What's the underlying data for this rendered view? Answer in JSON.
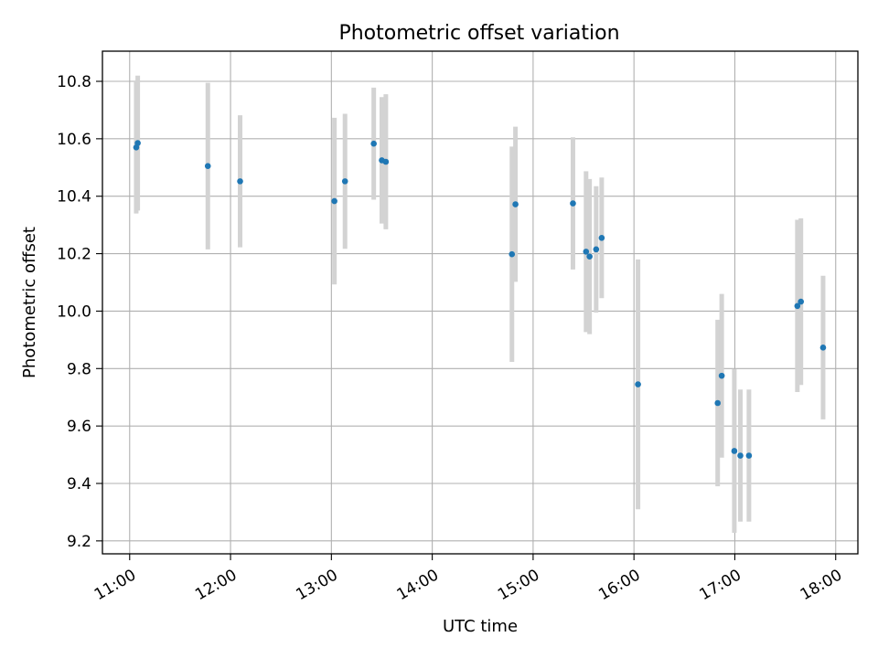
{
  "chart_data": {
    "type": "scatter",
    "title": "Photometric offset variation",
    "xlabel": "UTC time",
    "ylabel": "Photometric offset",
    "x_unit": "hours",
    "xlim": [
      10.73,
      18.22
    ],
    "ylim": [
      9.155,
      10.905
    ],
    "grid": true,
    "legend": "none",
    "x_ticks": [
      {
        "value": 11,
        "label": "11:00"
      },
      {
        "value": 12,
        "label": "12:00"
      },
      {
        "value": 13,
        "label": "13:00"
      },
      {
        "value": 14,
        "label": "14:00"
      },
      {
        "value": 15,
        "label": "15:00"
      },
      {
        "value": 16,
        "label": "16:00"
      },
      {
        "value": 17,
        "label": "17:00"
      },
      {
        "value": 18,
        "label": "18:00"
      }
    ],
    "y_ticks": [
      {
        "value": 9.2,
        "label": "9.2"
      },
      {
        "value": 9.4,
        "label": "9.4"
      },
      {
        "value": 9.6,
        "label": "9.6"
      },
      {
        "value": 9.8,
        "label": "9.8"
      },
      {
        "value": 10.0,
        "label": "10.0"
      },
      {
        "value": 10.2,
        "label": "10.2"
      },
      {
        "value": 10.4,
        "label": "10.4"
      },
      {
        "value": 10.6,
        "label": "10.6"
      },
      {
        "value": 10.8,
        "label": "10.8"
      }
    ],
    "series": [
      {
        "name": "offset",
        "marker_color": "#1f77b4",
        "errorbar_color": "#d3d3d3",
        "points": [
          {
            "x": 11.065,
            "y": 10.57,
            "yerr": 0.23
          },
          {
            "x": 11.08,
            "y": 10.585,
            "yerr": 0.235
          },
          {
            "x": 11.775,
            "y": 10.505,
            "yerr": 0.29
          },
          {
            "x": 12.095,
            "y": 10.452,
            "yerr": 0.23
          },
          {
            "x": 13.03,
            "y": 10.383,
            "yerr": 0.29
          },
          {
            "x": 13.135,
            "y": 10.452,
            "yerr": 0.235
          },
          {
            "x": 13.42,
            "y": 10.583,
            "yerr": 0.195
          },
          {
            "x": 13.5,
            "y": 10.525,
            "yerr": 0.22
          },
          {
            "x": 13.54,
            "y": 10.52,
            "yerr": 0.235
          },
          {
            "x": 14.79,
            "y": 10.198,
            "yerr": 0.375
          },
          {
            "x": 14.825,
            "y": 10.372,
            "yerr": 0.27
          },
          {
            "x": 15.395,
            "y": 10.375,
            "yerr": 0.23
          },
          {
            "x": 15.525,
            "y": 10.207,
            "yerr": 0.28
          },
          {
            "x": 15.56,
            "y": 10.19,
            "yerr": 0.27
          },
          {
            "x": 15.625,
            "y": 10.215,
            "yerr": 0.22
          },
          {
            "x": 15.68,
            "y": 10.255,
            "yerr": 0.21
          },
          {
            "x": 16.04,
            "y": 9.745,
            "yerr": 0.435
          },
          {
            "x": 16.83,
            "y": 9.68,
            "yerr": 0.29
          },
          {
            "x": 16.87,
            "y": 9.775,
            "yerr": 0.285
          },
          {
            "x": 16.995,
            "y": 9.513,
            "yerr": 0.285
          },
          {
            "x": 17.055,
            "y": 9.497,
            "yerr": 0.23
          },
          {
            "x": 17.14,
            "y": 9.497,
            "yerr": 0.23
          },
          {
            "x": 17.62,
            "y": 10.018,
            "yerr": 0.3
          },
          {
            "x": 17.655,
            "y": 10.033,
            "yerr": 0.29
          },
          {
            "x": 17.875,
            "y": 9.873,
            "yerr": 0.25
          }
        ]
      }
    ]
  }
}
